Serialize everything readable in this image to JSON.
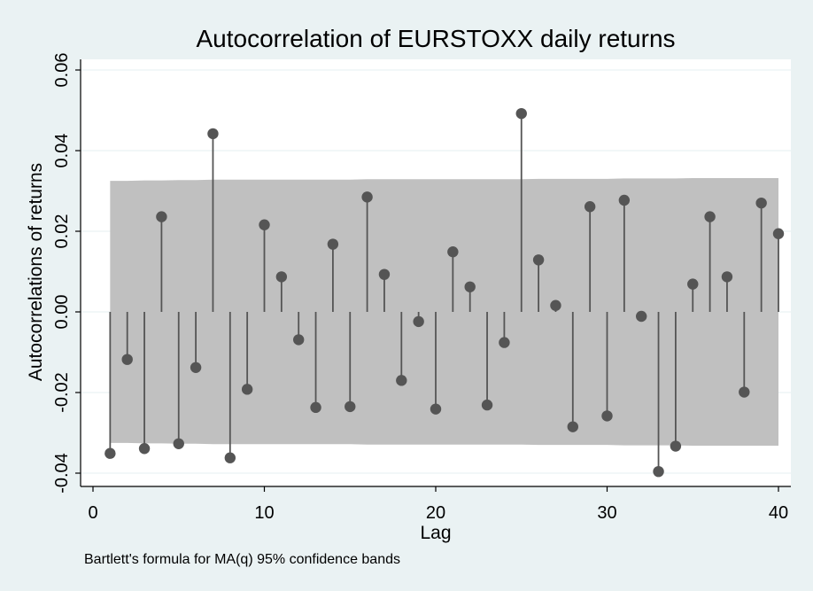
{
  "chart_data": {
    "type": "stem",
    "title": "Autocorrelation of EURSTOXX daily returns",
    "xlabel": "Lag",
    "ylabel": "Autocorrelations of returns",
    "note": "Bartlett's formula for MA(q) 95% confidence bands",
    "xlim": [
      0,
      40
    ],
    "ylim": [
      -0.04,
      0.06
    ],
    "x_ticks": [
      "0",
      "10",
      "20",
      "30",
      "40"
    ],
    "y_ticks": [
      "-0.04",
      "-0.02",
      "0.00",
      "0.02",
      "0.04",
      "0.06"
    ],
    "grid": true,
    "x": [
      1,
      2,
      3,
      4,
      5,
      6,
      7,
      8,
      9,
      10,
      11,
      12,
      13,
      14,
      15,
      16,
      17,
      18,
      19,
      20,
      21,
      22,
      23,
      24,
      25,
      26,
      27,
      28,
      29,
      30,
      31,
      32,
      33,
      34,
      35,
      36,
      37,
      38,
      39,
      40
    ],
    "values": [
      -0.0351,
      -0.0118,
      -0.0339,
      0.0236,
      -0.0327,
      -0.0138,
      0.0442,
      -0.0362,
      -0.0192,
      0.0216,
      0.0087,
      -0.0069,
      -0.0237,
      0.0168,
      -0.0235,
      0.0285,
      0.0093,
      -0.017,
      -0.0024,
      -0.0241,
      0.0149,
      0.0062,
      -0.0231,
      -0.0076,
      0.0492,
      0.0129,
      0.0016,
      -0.0285,
      0.0261,
      -0.0258,
      0.0277,
      -0.0011,
      -0.0396,
      -0.0333,
      0.0069,
      0.0236,
      0.0087,
      -0.0199,
      0.027,
      0.0194
    ],
    "confidence_band": {
      "upper": [
        0.0325,
        0.0325,
        0.0326,
        0.0326,
        0.0327,
        0.0327,
        0.0328,
        0.0328,
        0.0328,
        0.0328,
        0.0328,
        0.0328,
        0.0328,
        0.0328,
        0.0328,
        0.0329,
        0.0329,
        0.0329,
        0.0329,
        0.0329,
        0.0329,
        0.0329,
        0.0329,
        0.0329,
        0.0329,
        0.033,
        0.033,
        0.033,
        0.033,
        0.033,
        0.0331,
        0.0331,
        0.0331,
        0.0331,
        0.0332,
        0.0332,
        0.0332,
        0.0332,
        0.0332,
        0.0332
      ],
      "lower": [
        -0.0325,
        -0.0325,
        -0.0326,
        -0.0326,
        -0.0327,
        -0.0327,
        -0.0328,
        -0.0328,
        -0.0328,
        -0.0328,
        -0.0328,
        -0.0328,
        -0.0328,
        -0.0328,
        -0.0328,
        -0.0329,
        -0.0329,
        -0.0329,
        -0.0329,
        -0.0329,
        -0.0329,
        -0.0329,
        -0.0329,
        -0.0329,
        -0.0329,
        -0.033,
        -0.033,
        -0.033,
        -0.033,
        -0.033,
        -0.0331,
        -0.0331,
        -0.0331,
        -0.0331,
        -0.0332,
        -0.0332,
        -0.0332,
        -0.0332,
        -0.0332,
        -0.0332
      ]
    },
    "colors": {
      "background": "#eaf2f3",
      "plot_area": "#ffffff",
      "band": "#c0c0c0",
      "marker": "#555555",
      "stem": "#555555",
      "grid": "#eaf2f3"
    }
  }
}
